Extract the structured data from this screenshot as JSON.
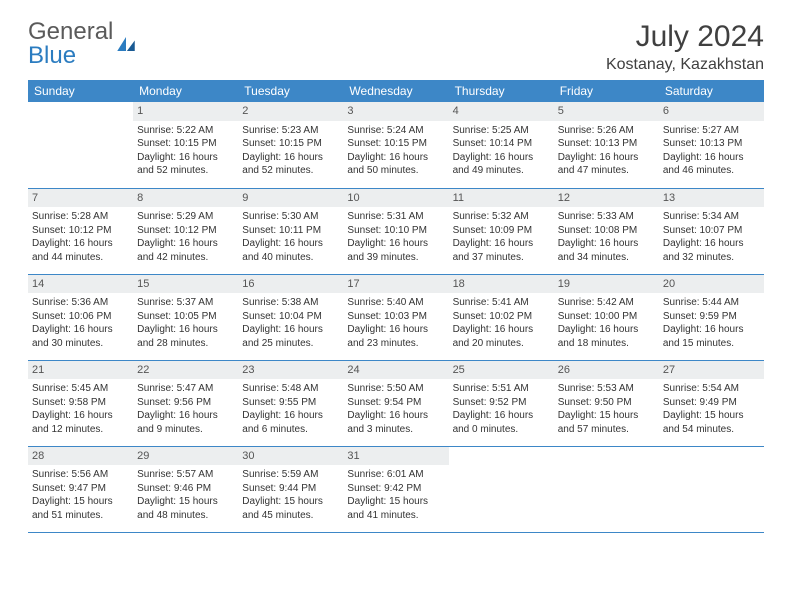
{
  "brand": {
    "name1": "General",
    "name2": "Blue"
  },
  "title": "July 2024",
  "location": "Kostanay, Kazakhstan",
  "colors": {
    "header_bg": "#3d87c7",
    "header_text": "#ffffff",
    "daynum_bg": "#eceeef",
    "border": "#3d87c7",
    "brand_gray": "#5a5a5a",
    "brand_blue": "#2b7cc0"
  },
  "day_headers": [
    "Sunday",
    "Monday",
    "Tuesday",
    "Wednesday",
    "Thursday",
    "Friday",
    "Saturday"
  ],
  "weeks": [
    [
      {
        "n": "",
        "sunrise": "",
        "sunset": "",
        "daylight": ""
      },
      {
        "n": "1",
        "sunrise": "Sunrise: 5:22 AM",
        "sunset": "Sunset: 10:15 PM",
        "daylight": "Daylight: 16 hours and 52 minutes."
      },
      {
        "n": "2",
        "sunrise": "Sunrise: 5:23 AM",
        "sunset": "Sunset: 10:15 PM",
        "daylight": "Daylight: 16 hours and 52 minutes."
      },
      {
        "n": "3",
        "sunrise": "Sunrise: 5:24 AM",
        "sunset": "Sunset: 10:15 PM",
        "daylight": "Daylight: 16 hours and 50 minutes."
      },
      {
        "n": "4",
        "sunrise": "Sunrise: 5:25 AM",
        "sunset": "Sunset: 10:14 PM",
        "daylight": "Daylight: 16 hours and 49 minutes."
      },
      {
        "n": "5",
        "sunrise": "Sunrise: 5:26 AM",
        "sunset": "Sunset: 10:13 PM",
        "daylight": "Daylight: 16 hours and 47 minutes."
      },
      {
        "n": "6",
        "sunrise": "Sunrise: 5:27 AM",
        "sunset": "Sunset: 10:13 PM",
        "daylight": "Daylight: 16 hours and 46 minutes."
      }
    ],
    [
      {
        "n": "7",
        "sunrise": "Sunrise: 5:28 AM",
        "sunset": "Sunset: 10:12 PM",
        "daylight": "Daylight: 16 hours and 44 minutes."
      },
      {
        "n": "8",
        "sunrise": "Sunrise: 5:29 AM",
        "sunset": "Sunset: 10:12 PM",
        "daylight": "Daylight: 16 hours and 42 minutes."
      },
      {
        "n": "9",
        "sunrise": "Sunrise: 5:30 AM",
        "sunset": "Sunset: 10:11 PM",
        "daylight": "Daylight: 16 hours and 40 minutes."
      },
      {
        "n": "10",
        "sunrise": "Sunrise: 5:31 AM",
        "sunset": "Sunset: 10:10 PM",
        "daylight": "Daylight: 16 hours and 39 minutes."
      },
      {
        "n": "11",
        "sunrise": "Sunrise: 5:32 AM",
        "sunset": "Sunset: 10:09 PM",
        "daylight": "Daylight: 16 hours and 37 minutes."
      },
      {
        "n": "12",
        "sunrise": "Sunrise: 5:33 AM",
        "sunset": "Sunset: 10:08 PM",
        "daylight": "Daylight: 16 hours and 34 minutes."
      },
      {
        "n": "13",
        "sunrise": "Sunrise: 5:34 AM",
        "sunset": "Sunset: 10:07 PM",
        "daylight": "Daylight: 16 hours and 32 minutes."
      }
    ],
    [
      {
        "n": "14",
        "sunrise": "Sunrise: 5:36 AM",
        "sunset": "Sunset: 10:06 PM",
        "daylight": "Daylight: 16 hours and 30 minutes."
      },
      {
        "n": "15",
        "sunrise": "Sunrise: 5:37 AM",
        "sunset": "Sunset: 10:05 PM",
        "daylight": "Daylight: 16 hours and 28 minutes."
      },
      {
        "n": "16",
        "sunrise": "Sunrise: 5:38 AM",
        "sunset": "Sunset: 10:04 PM",
        "daylight": "Daylight: 16 hours and 25 minutes."
      },
      {
        "n": "17",
        "sunrise": "Sunrise: 5:40 AM",
        "sunset": "Sunset: 10:03 PM",
        "daylight": "Daylight: 16 hours and 23 minutes."
      },
      {
        "n": "18",
        "sunrise": "Sunrise: 5:41 AM",
        "sunset": "Sunset: 10:02 PM",
        "daylight": "Daylight: 16 hours and 20 minutes."
      },
      {
        "n": "19",
        "sunrise": "Sunrise: 5:42 AM",
        "sunset": "Sunset: 10:00 PM",
        "daylight": "Daylight: 16 hours and 18 minutes."
      },
      {
        "n": "20",
        "sunrise": "Sunrise: 5:44 AM",
        "sunset": "Sunset: 9:59 PM",
        "daylight": "Daylight: 16 hours and 15 minutes."
      }
    ],
    [
      {
        "n": "21",
        "sunrise": "Sunrise: 5:45 AM",
        "sunset": "Sunset: 9:58 PM",
        "daylight": "Daylight: 16 hours and 12 minutes."
      },
      {
        "n": "22",
        "sunrise": "Sunrise: 5:47 AM",
        "sunset": "Sunset: 9:56 PM",
        "daylight": "Daylight: 16 hours and 9 minutes."
      },
      {
        "n": "23",
        "sunrise": "Sunrise: 5:48 AM",
        "sunset": "Sunset: 9:55 PM",
        "daylight": "Daylight: 16 hours and 6 minutes."
      },
      {
        "n": "24",
        "sunrise": "Sunrise: 5:50 AM",
        "sunset": "Sunset: 9:54 PM",
        "daylight": "Daylight: 16 hours and 3 minutes."
      },
      {
        "n": "25",
        "sunrise": "Sunrise: 5:51 AM",
        "sunset": "Sunset: 9:52 PM",
        "daylight": "Daylight: 16 hours and 0 minutes."
      },
      {
        "n": "26",
        "sunrise": "Sunrise: 5:53 AM",
        "sunset": "Sunset: 9:50 PM",
        "daylight": "Daylight: 15 hours and 57 minutes."
      },
      {
        "n": "27",
        "sunrise": "Sunrise: 5:54 AM",
        "sunset": "Sunset: 9:49 PM",
        "daylight": "Daylight: 15 hours and 54 minutes."
      }
    ],
    [
      {
        "n": "28",
        "sunrise": "Sunrise: 5:56 AM",
        "sunset": "Sunset: 9:47 PM",
        "daylight": "Daylight: 15 hours and 51 minutes."
      },
      {
        "n": "29",
        "sunrise": "Sunrise: 5:57 AM",
        "sunset": "Sunset: 9:46 PM",
        "daylight": "Daylight: 15 hours and 48 minutes."
      },
      {
        "n": "30",
        "sunrise": "Sunrise: 5:59 AM",
        "sunset": "Sunset: 9:44 PM",
        "daylight": "Daylight: 15 hours and 45 minutes."
      },
      {
        "n": "31",
        "sunrise": "Sunrise: 6:01 AM",
        "sunset": "Sunset: 9:42 PM",
        "daylight": "Daylight: 15 hours and 41 minutes."
      },
      {
        "n": "",
        "sunrise": "",
        "sunset": "",
        "daylight": ""
      },
      {
        "n": "",
        "sunrise": "",
        "sunset": "",
        "daylight": ""
      },
      {
        "n": "",
        "sunrise": "",
        "sunset": "",
        "daylight": ""
      }
    ]
  ]
}
